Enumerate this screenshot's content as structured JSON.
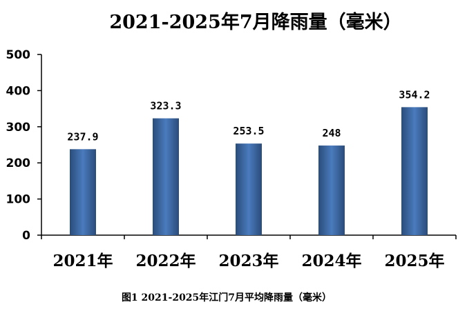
{
  "chart_data": {
    "type": "bar",
    "title": "2021-2025年7月降雨量（毫米）",
    "categories": [
      "2021年",
      "2022年",
      "2023年",
      "2024年",
      "2025年"
    ],
    "values": [
      237.9,
      323.3,
      253.5,
      248,
      354.2
    ],
    "value_labels": [
      "237.9",
      "323.3",
      "253.5",
      "248",
      "354.2"
    ],
    "ylim": [
      0,
      500
    ],
    "yticks": [
      0,
      100,
      200,
      300,
      400,
      500
    ],
    "ytick_labels": [
      "0",
      "100",
      "200",
      "300",
      "400",
      "500"
    ],
    "xlabel": "",
    "ylabel": "",
    "grid": false,
    "legend": "none",
    "bar_color": "#3d6aa4",
    "bar_color_edge": "#2a4c7a",
    "bar_color_center": "#4a7bbd"
  },
  "caption": "图1 2021-2025年江门7月平均降雨量（毫米）"
}
